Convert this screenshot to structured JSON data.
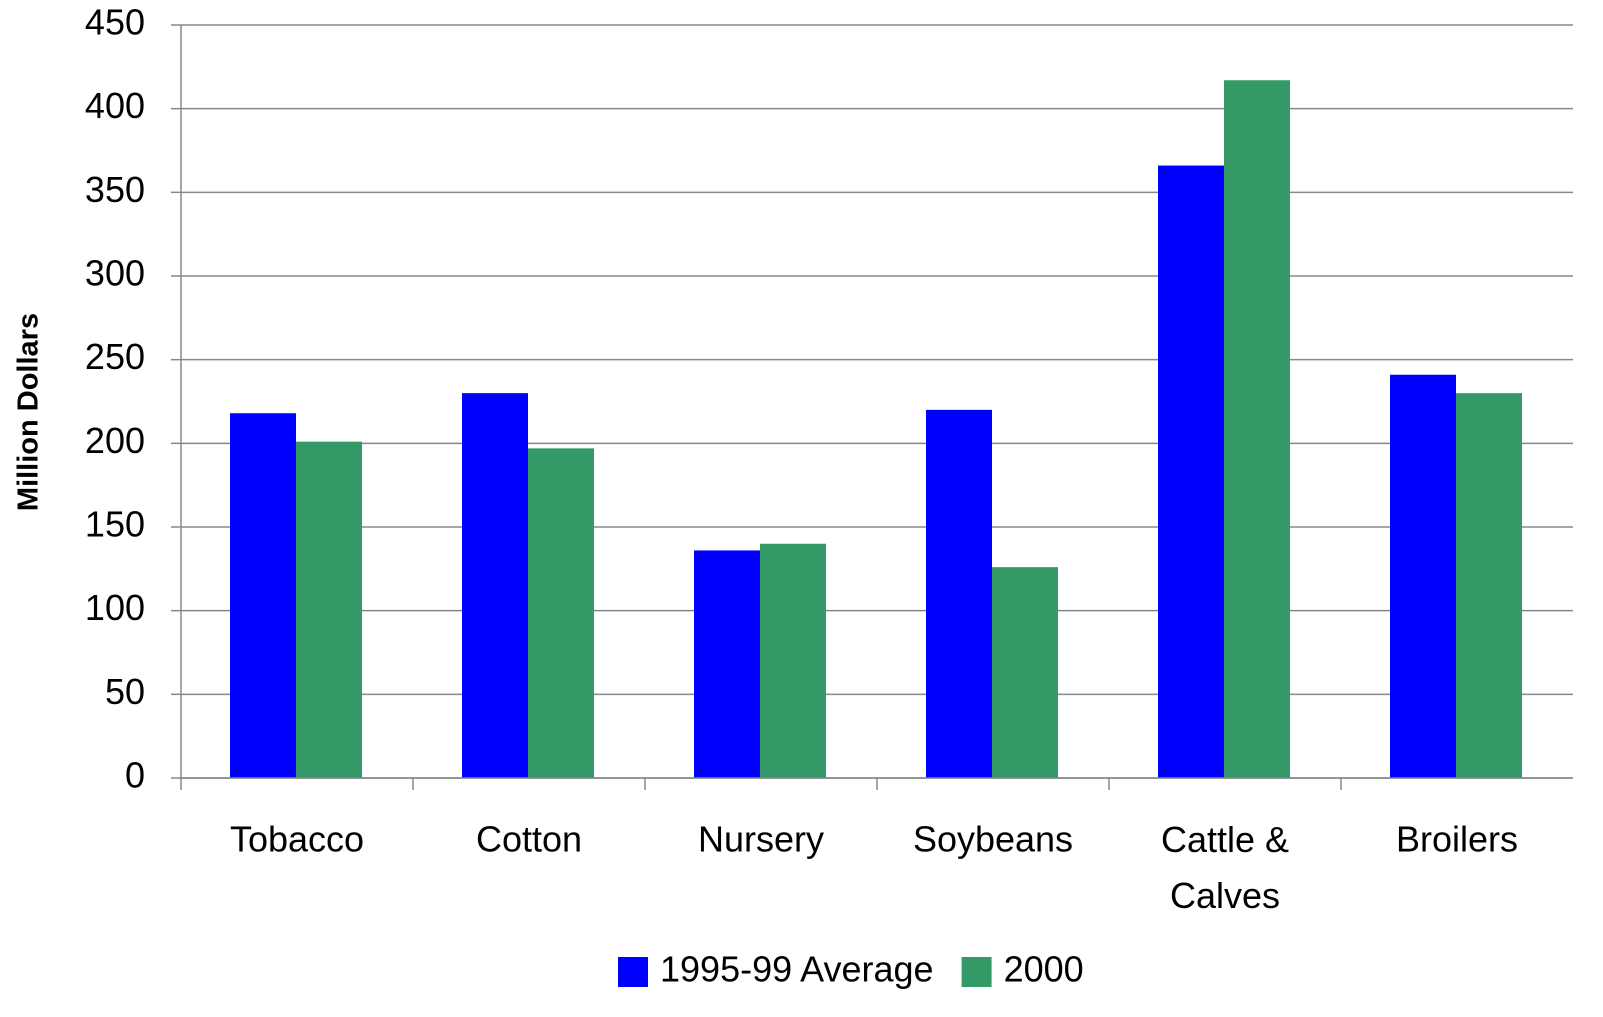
{
  "chart_data": {
    "type": "bar",
    "y_label": "Million Dollars",
    "categories": [
      "Tobacco",
      "Cotton",
      "Nursery",
      "Soybeans",
      "Cattle & Calves",
      "Broilers"
    ],
    "series": [
      {
        "name": "1995-99 Average",
        "color": "#0000ff",
        "values": [
          218,
          230,
          136,
          220,
          366,
          241
        ]
      },
      {
        "name": "2000",
        "color": "#339966",
        "values": [
          201,
          197,
          140,
          126,
          417,
          230
        ]
      }
    ],
    "ylim": [
      0,
      450
    ],
    "yticks": [
      0,
      50,
      100,
      150,
      200,
      250,
      300,
      350,
      400,
      450
    ],
    "grid": true,
    "legend": "bottom"
  }
}
